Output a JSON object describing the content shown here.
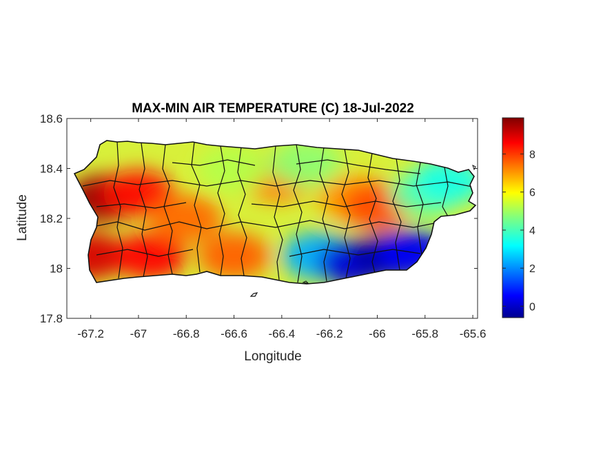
{
  "chart_data": {
    "type": "heatmap",
    "title": "MAX-MIN AIR TEMPERATURE (C) 18-Jul-2022",
    "xlabel": "Longitude",
    "ylabel": "Latitude",
    "xlim": [
      -67.3,
      -65.58
    ],
    "ylim": [
      17.8,
      18.6
    ],
    "xticks": [
      "-67.2",
      "-67",
      "-66.8",
      "-66.6",
      "-66.4",
      "-66.2",
      "-66",
      "-65.8",
      "-65.6"
    ],
    "xtick_values": [
      -67.2,
      -67,
      -66.8,
      -66.6,
      -66.4,
      -66.2,
      -66,
      -65.8,
      -65.6
    ],
    "yticks": [
      "18.6",
      "18.4",
      "18.2",
      "18",
      "17.8"
    ],
    "ytick_values": [
      18.6,
      18.4,
      18.2,
      18,
      17.8
    ],
    "colorbar": {
      "colormap": "jet",
      "range": [
        -0.6,
        9.9
      ],
      "ticks": [
        "8",
        "6",
        "4",
        "2",
        "0"
      ],
      "tick_values": [
        8,
        6,
        4,
        2,
        0
      ]
    },
    "grid": false,
    "field_samples": [
      {
        "lon": -67.15,
        "lat": 18.28,
        "value": 9.6
      },
      {
        "lon": -67.2,
        "lat": 18.05,
        "value": 9.0
      },
      {
        "lon": -67.0,
        "lat": 18.3,
        "value": 8.5
      },
      {
        "lon": -66.95,
        "lat": 18.05,
        "value": 8.6
      },
      {
        "lon": -66.8,
        "lat": 18.2,
        "value": 7.5
      },
      {
        "lon": -66.6,
        "lat": 18.05,
        "value": 7.6
      },
      {
        "lon": -66.42,
        "lat": 18.36,
        "value": 7.3
      },
      {
        "lon": -66.1,
        "lat": 18.28,
        "value": 7.0
      },
      {
        "lon": -66.0,
        "lat": 18.25,
        "value": 7.8
      },
      {
        "lon": -66.6,
        "lat": 18.4,
        "value": 5.2
      },
      {
        "lon": -66.3,
        "lat": 18.42,
        "value": 4.8
      },
      {
        "lon": -65.8,
        "lat": 18.3,
        "value": 4.3
      },
      {
        "lon": -65.7,
        "lat": 18.35,
        "value": 3.6
      },
      {
        "lon": -66.25,
        "lat": 18.05,
        "value": 2.5
      },
      {
        "lon": -66.1,
        "lat": 18.02,
        "value": 0.3
      },
      {
        "lon": -65.95,
        "lat": 18.05,
        "value": -0.3
      },
      {
        "lon": -65.85,
        "lat": 18.06,
        "value": 0.6
      }
    ]
  }
}
